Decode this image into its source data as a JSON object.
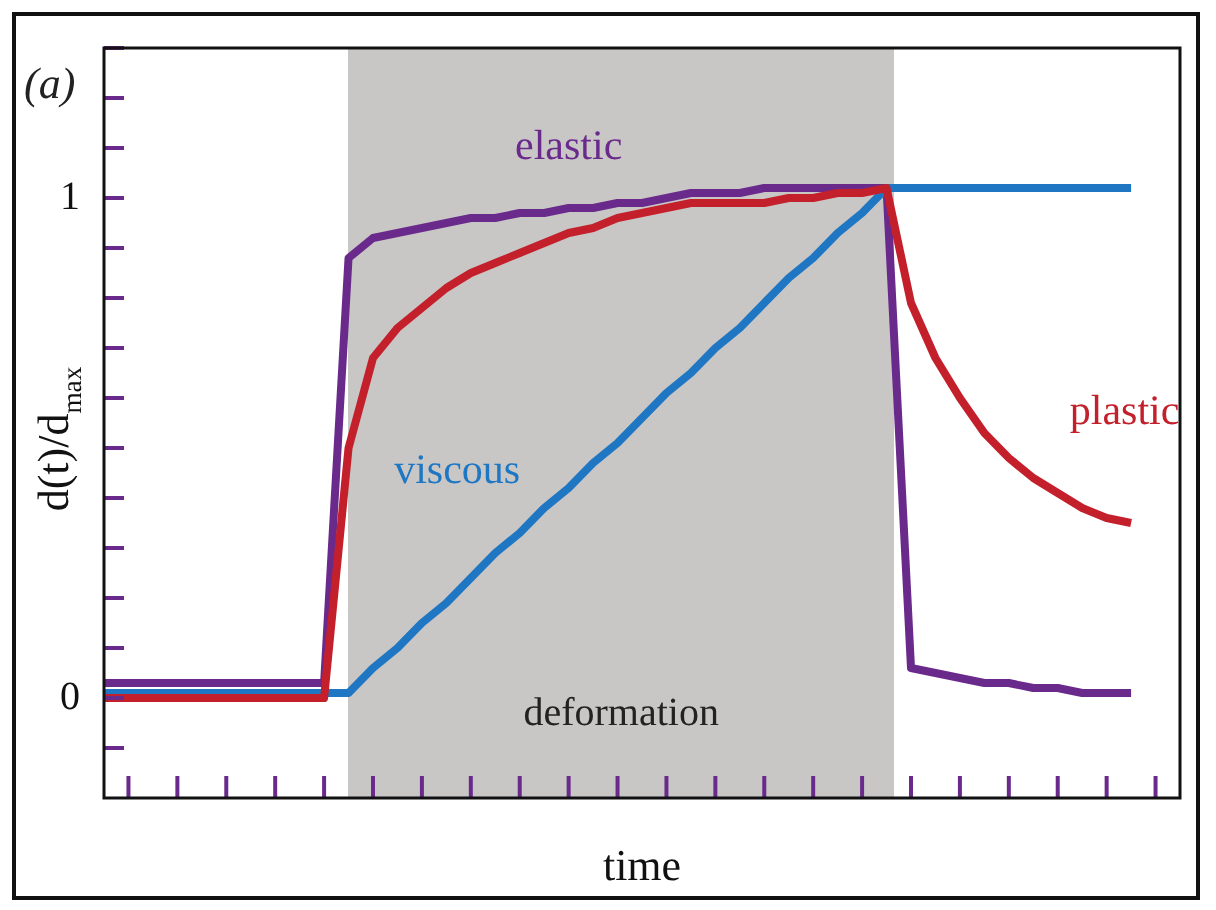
{
  "chart_data": {
    "type": "line",
    "xlabel": "time",
    "ylabel": "d(t)/d$_{max}$",
    "marker": "none",
    "tick_labels": "y",
    "annotations": [
      "(a)",
      "deformation"
    ],
    "categories": [
      null,
      null,
      null,
      null,
      null,
      null,
      null,
      null,
      null,
      null,
      null,
      null,
      null,
      null,
      null,
      null,
      null,
      null,
      null,
      null,
      null,
      null,
      null,
      null,
      null,
      null,
      null,
      null,
      null,
      null,
      null,
      null,
      null,
      null,
      null,
      null,
      null,
      null,
      null,
      null,
      null,
      null,
      null,
      null,
      null
    ],
    "ylim": [
      -0.2,
      1.3
    ],
    "yticks": [
      {
        "value": -0.1,
        "label": null
      },
      0,
      {
        "value": 0.1,
        "label": null
      },
      {
        "value": 0.2,
        "label": null
      },
      {
        "value": 0.3,
        "label": null
      },
      {
        "value": 0.4,
        "label": null
      },
      {
        "value": 0.5,
        "label": null
      },
      {
        "value": 0.6,
        "label": null
      },
      {
        "value": 0.7,
        "label": null
      },
      {
        "value": 0.8,
        "label": null
      },
      {
        "value": 0.9,
        "label": null
      },
      1,
      {
        "value": 1.1,
        "label": null
      },
      {
        "value": 1.2,
        "label": null
      },
      {
        "value": 1.3,
        "label": null
      }
    ],
    "series": [
      {
        "name": "elastic",
        "color": "#6a2a8c",
        "values": [
          0.03,
          0.03,
          0.03,
          0.03,
          0.03,
          0.03,
          0.03,
          0.03,
          0.03,
          0.03,
          0.88,
          0.92,
          0.93,
          0.94,
          0.95,
          0.96,
          0.96,
          0.97,
          0.97,
          0.98,
          0.98,
          0.99,
          0.99,
          1.0,
          1.01,
          1.01,
          1.01,
          1.02,
          1.02,
          1.02,
          1.02,
          1.02,
          1.02,
          0.06,
          0.05,
          0.04,
          0.03,
          0.03,
          0.02,
          0.02,
          0.01,
          0.01,
          0.01,
          null,
          null
        ]
      },
      {
        "name": "viscous",
        "color": "#1f77c4",
        "values": [
          0.01,
          0.01,
          0.01,
          0.01,
          0.01,
          0.01,
          0.01,
          0.01,
          0.01,
          0.01,
          0.01,
          0.06,
          0.1,
          0.15,
          0.19,
          0.24,
          0.29,
          0.33,
          0.38,
          0.42,
          0.47,
          0.51,
          0.56,
          0.61,
          0.65,
          0.7,
          0.74,
          0.79,
          0.84,
          0.88,
          0.93,
          0.97,
          1.02,
          1.02,
          1.02,
          1.02,
          1.02,
          1.02,
          1.02,
          1.02,
          1.02,
          1.02,
          1.02,
          null,
          null
        ]
      },
      {
        "name": "plastic",
        "color": "#c4202b",
        "values": [
          0,
          0,
          0,
          0,
          0,
          0,
          0,
          0,
          0,
          0,
          0.5,
          0.68,
          0.74,
          0.78,
          0.82,
          0.85,
          0.87,
          0.89,
          0.91,
          0.93,
          0.94,
          0.96,
          0.97,
          0.98,
          0.99,
          0.99,
          0.99,
          0.99,
          1.0,
          1.0,
          1.01,
          1.01,
          1.02,
          0.79,
          0.68,
          0.6,
          0.53,
          0.48,
          0.44,
          0.41,
          0.38,
          0.36,
          0.35,
          null,
          null
        ]
      }
    ]
  }
}
